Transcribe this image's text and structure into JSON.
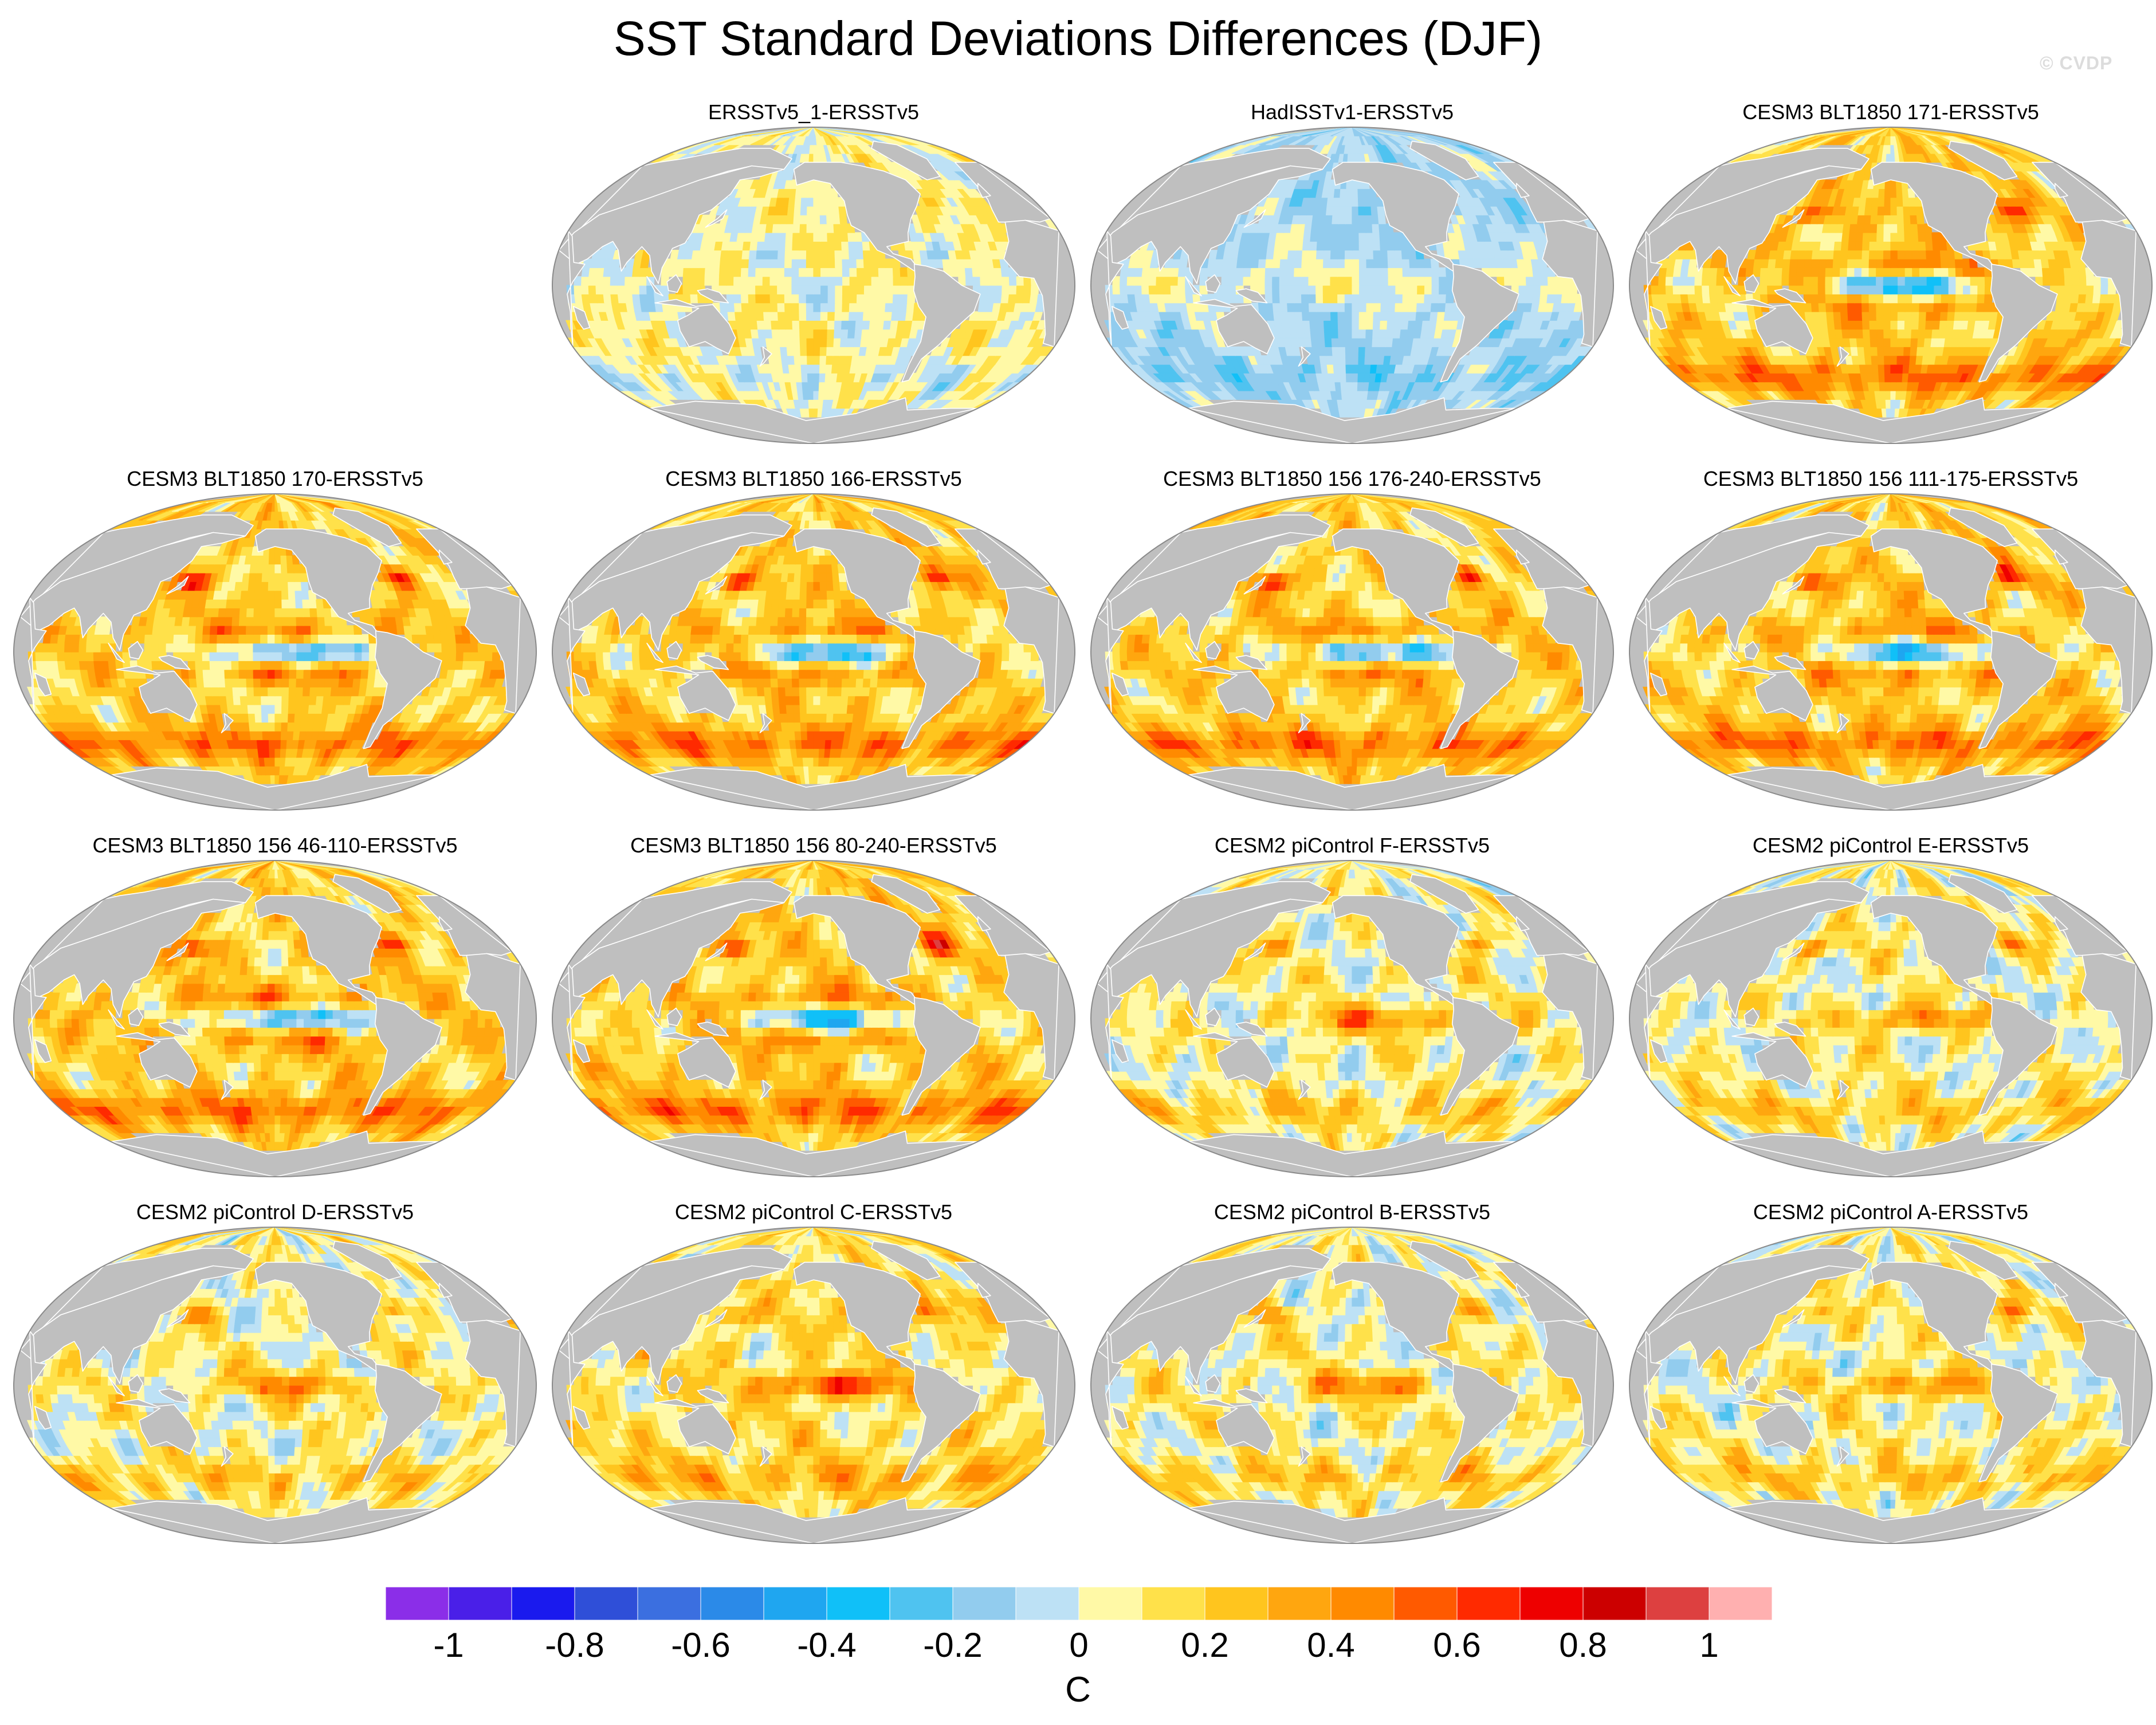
{
  "title": "SST Standard Deviations Differences (DJF)",
  "watermark": "© CVDP",
  "panels": [
    {
      "label": "ERSSTv5_1-ERSSTv5",
      "pattern": "obs-small"
    },
    {
      "label": "HadISSTv1-ERSSTv5",
      "pattern": "obs-negative"
    },
    {
      "label": "CESM3 BLT1850 171-ERSSTv5",
      "pattern": "cesm3"
    },
    {
      "label": "CESM3 BLT1850 170-ERSSTv5",
      "pattern": "cesm3"
    },
    {
      "label": "CESM3 BLT1850 166-ERSSTv5",
      "pattern": "cesm3"
    },
    {
      "label": "CESM3 BLT1850 156 176-240-ERSSTv5",
      "pattern": "cesm3"
    },
    {
      "label": "CESM3 BLT1850 156 111-175-ERSSTv5",
      "pattern": "cesm3"
    },
    {
      "label": "CESM3 BLT1850 156 46-110-ERSSTv5",
      "pattern": "cesm3"
    },
    {
      "label": "CESM3 BLT1850 156 80-240-ERSSTv5",
      "pattern": "cesm3"
    },
    {
      "label": "CESM2 piControl F-ERSSTv5",
      "pattern": "cesm2"
    },
    {
      "label": "CESM2 piControl E-ERSSTv5",
      "pattern": "cesm2"
    },
    {
      "label": "CESM2 piControl D-ERSSTv5",
      "pattern": "cesm2"
    },
    {
      "label": "CESM2 piControl C-ERSSTv5",
      "pattern": "cesm2-strong"
    },
    {
      "label": "CESM2 piControl B-ERSSTv5",
      "pattern": "cesm2"
    },
    {
      "label": "CESM2 piControl A-ERSSTv5",
      "pattern": "cesm2"
    }
  ],
  "colorbar": {
    "unit": "C",
    "levels": [
      -1,
      -0.9,
      -0.8,
      -0.7,
      -0.6,
      -0.5,
      -0.4,
      -0.3,
      -0.2,
      -0.1,
      0,
      0.1,
      0.2,
      0.3,
      0.4,
      0.5,
      0.6,
      0.7,
      0.8,
      0.9,
      1
    ],
    "tick_labels": [
      "-1",
      "-0.8",
      "-0.6",
      "-0.4",
      "-0.2",
      "0",
      "0.2",
      "0.4",
      "0.6",
      "0.8",
      "1"
    ],
    "colors": [
      "#8b2ee8",
      "#4a1fe8",
      "#1a1aee",
      "#2f4fd8",
      "#3b6fe0",
      "#2b8ae8",
      "#1fa6f0",
      "#10c0f8",
      "#4fc3f0",
      "#92ccee",
      "#bde1f5",
      "#fff9a6",
      "#ffe14a",
      "#ffc51e",
      "#ffa60f",
      "#ff8a00",
      "#ff5a00",
      "#ff2a00",
      "#ee0000",
      "#cc0000",
      "#dd4040",
      "#ffb0b0"
    ]
  },
  "land_color": "#bfbfbf"
}
